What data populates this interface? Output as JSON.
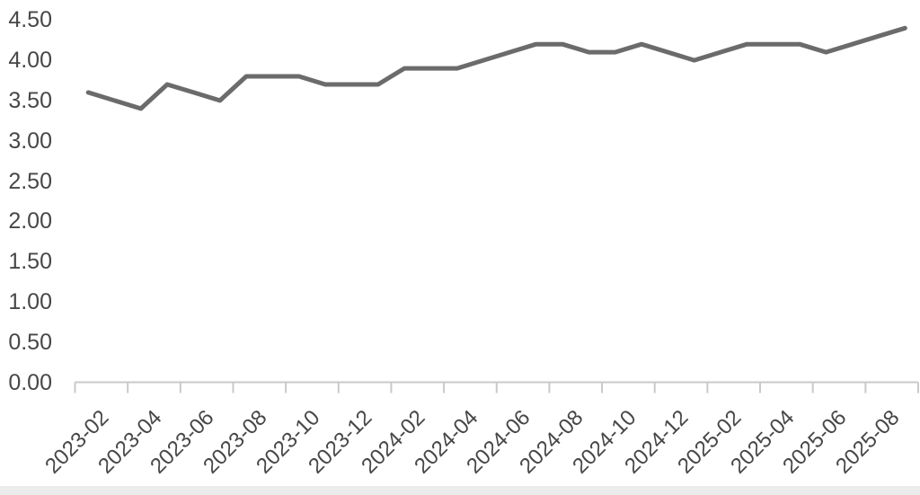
{
  "chart_data": {
    "type": "line",
    "title": "",
    "categories": [
      "2023-02",
      "2023-03",
      "2023-04",
      "2023-05",
      "2023-06",
      "2023-07",
      "2023-08",
      "2023-09",
      "2023-10",
      "2023-11",
      "2023-12",
      "2024-01",
      "2024-02",
      "2024-03",
      "2024-04",
      "2024-05",
      "2024-06",
      "2024-07",
      "2024-08",
      "2024-09",
      "2024-10",
      "2024-11",
      "2024-12",
      "2025-01",
      "2025-02",
      "2025-03",
      "2025-04",
      "2025-05",
      "2025-06",
      "2025-07",
      "2025-08",
      "2025-09"
    ],
    "values": [
      3.6,
      3.5,
      3.4,
      3.7,
      3.6,
      3.5,
      3.8,
      3.8,
      3.8,
      3.7,
      3.7,
      3.7,
      3.9,
      3.9,
      3.9,
      4.0,
      4.1,
      4.2,
      4.2,
      4.1,
      4.1,
      4.2,
      4.1,
      4.0,
      4.1,
      4.2,
      4.2,
      4.2,
      4.1,
      4.2,
      4.3,
      4.4
    ],
    "xlabel": "",
    "ylabel": "",
    "ylim": [
      0,
      4.5
    ],
    "y_tick_step": 0.5,
    "y_tick_labels": [
      "0.00",
      "0.50",
      "1.00",
      "1.50",
      "2.00",
      "2.50",
      "3.00",
      "3.50",
      "4.00",
      "4.50"
    ],
    "x_tick_labels": [
      "2023-02",
      "2023-04",
      "2023-06",
      "2023-08",
      "2023-10",
      "2023-12",
      "2024-02",
      "2024-04",
      "2024-06",
      "2024-08",
      "2024-10",
      "2024-12",
      "2025-02",
      "2025-04",
      "2025-06",
      "2025-08"
    ],
    "x_label_interval": 2,
    "grid": false,
    "legend": false,
    "line_color": "#6b6b6b",
    "line_width": 5,
    "axis_color": "#c9c9c9",
    "label_color": "#474747",
    "background_color": "#ffffff",
    "bottom_strip_color": "#ececec"
  }
}
